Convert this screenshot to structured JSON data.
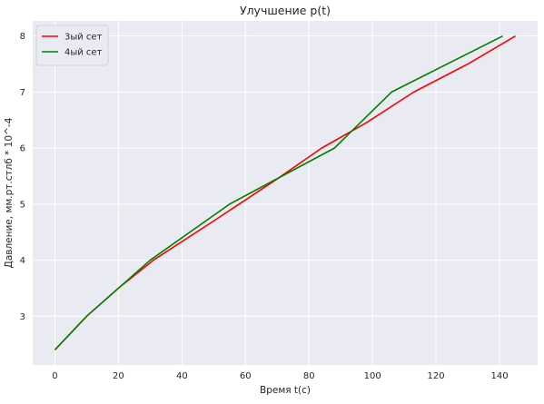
{
  "chart_data": {
    "type": "line",
    "title": "Улучшение p(t)",
    "xlabel": "Время t(с)",
    "ylabel": "Давление, мм.рт.стлб * 10^-4",
    "xlim": [
      -7,
      152
    ],
    "ylim": [
      2.13,
      8.27
    ],
    "xticks": [
      0,
      20,
      40,
      60,
      80,
      100,
      120,
      140
    ],
    "yticks": [
      3,
      4,
      5,
      6,
      7,
      8
    ],
    "grid": true,
    "legend_position": "top-left",
    "series": [
      {
        "name": "3ый сет",
        "color": "#ff0000",
        "x": [
          0,
          10,
          20,
          31,
          50,
          70,
          84,
          98,
          113,
          130,
          145
        ],
        "y": [
          2.4,
          3.0,
          3.5,
          4.0,
          4.7,
          5.45,
          6.0,
          6.45,
          7.0,
          7.5,
          8.0
        ]
      },
      {
        "name": "4ый сет",
        "color": "#008000",
        "x": [
          0,
          10,
          20,
          30,
          55,
          88,
          106,
          141
        ],
        "y": [
          2.4,
          3.0,
          3.5,
          4.0,
          5.0,
          6.0,
          7.0,
          8.0
        ]
      }
    ]
  },
  "style": {
    "plot_bg": "#eaeaf2",
    "grid_color": "#ffffff",
    "text_color": "#262626"
  }
}
